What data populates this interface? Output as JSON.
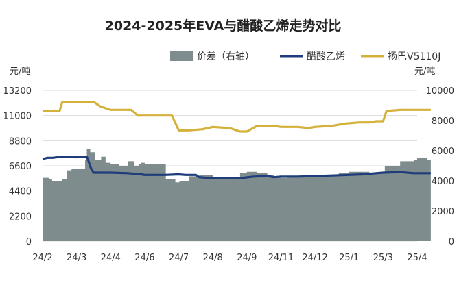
{
  "chart_data": {
    "type": "line",
    "title": "2024-2025年EVA与醋酸乙烯走势对比",
    "left_unit": "元/吨",
    "right_unit": "元/吨",
    "y_left": {
      "min": 0,
      "max": 13200,
      "ticks": [
        0,
        2200,
        4400,
        6600,
        8800,
        11000,
        13200
      ]
    },
    "y_right": {
      "min": 0,
      "max": 10000,
      "ticks": [
        0,
        2000,
        4000,
        6000,
        8000,
        10000
      ]
    },
    "x_ticks": [
      "24/2",
      "24/3",
      "24/4",
      "24/6",
      "24/7",
      "24/8",
      "24/9",
      "24/11",
      "24/12",
      "25/1",
      "25/3",
      "25/4"
    ],
    "legend": {
      "position": "top-right"
    },
    "series": [
      {
        "name": "价差（右轴）",
        "type": "area",
        "axis": "right",
        "color": "#7f8c8d",
        "x": [
          0,
          0.15,
          0.2,
          0.28,
          0.42,
          0.5,
          0.58,
          0.72,
          0.85,
          1.1,
          1.2,
          1.25,
          1.3,
          1.4,
          1.55,
          1.72,
          1.85,
          2.0,
          2.25,
          2.5,
          2.7,
          2.82,
          2.9,
          3.0,
          3.3,
          3.6,
          3.62,
          3.9,
          4.0,
          4.02,
          4.3,
          4.55,
          4.6,
          4.9,
          5.0,
          5.2,
          5.5,
          5.8,
          6.0,
          6.3,
          6.6,
          6.8,
          7.0,
          7.2,
          7.6,
          8.0,
          8.3,
          8.7,
          9.0,
          9.3,
          9.6,
          9.95,
          10.05,
          10.5,
          10.9,
          11.0,
          11.3,
          11.4
        ],
        "values": [
          4200,
          4200,
          4100,
          4000,
          4000,
          4000,
          4100,
          4700,
          4800,
          4800,
          4800,
          5400,
          6100,
          5900,
          5400,
          5600,
          5200,
          5100,
          5000,
          5300,
          5000,
          5100,
          5200,
          5100,
          5100,
          5100,
          4100,
          3900,
          3900,
          4000,
          4300,
          4300,
          4400,
          4400,
          4200,
          4100,
          4200,
          4500,
          4600,
          4500,
          4400,
          4300,
          4200,
          4300,
          4400,
          4300,
          4400,
          4500,
          4600,
          4600,
          4500,
          4500,
          5000,
          5300,
          5400,
          5500,
          5400,
          5400
        ]
      },
      {
        "name": "醋酸乙烯",
        "type": "line",
        "axis": "left",
        "color": "#1f3d7a",
        "x": [
          0,
          0.15,
          0.3,
          0.55,
          0.75,
          1.0,
          1.3,
          1.35,
          1.42,
          1.5,
          2.0,
          2.5,
          2.9,
          3.0,
          3.3,
          3.6,
          4.0,
          4.2,
          4.5,
          4.6,
          5.0,
          5.5,
          5.9,
          6.2,
          6.6,
          6.8,
          7.0,
          7.5,
          8.0,
          8.5,
          9.0,
          9.4,
          9.8,
          10.0,
          10.5,
          10.9,
          11.4
        ],
        "values": [
          7200,
          7300,
          7300,
          7400,
          7400,
          7350,
          7400,
          7000,
          6400,
          6000,
          6000,
          5950,
          5850,
          5800,
          5800,
          5800,
          5850,
          5800,
          5800,
          5600,
          5500,
          5500,
          5550,
          5650,
          5700,
          5600,
          5650,
          5650,
          5700,
          5750,
          5800,
          5850,
          5950,
          6000,
          6050,
          5950,
          5950
        ]
      },
      {
        "name": "扬巴V5110J",
        "type": "line",
        "axis": "left",
        "color": "#d4b13b",
        "x": [
          0,
          0.5,
          0.58,
          1.5,
          1.7,
          2.0,
          2.6,
          2.8,
          3.0,
          3.8,
          4.0,
          4.3,
          4.7,
          5.0,
          5.5,
          5.8,
          6.0,
          6.3,
          6.5,
          6.8,
          7.0,
          7.3,
          7.5,
          7.8,
          8.0,
          8.5,
          8.9,
          9.3,
          9.6,
          9.8,
          10.0,
          10.1,
          10.5,
          11.0,
          11.4
        ],
        "values": [
          11400,
          11400,
          12200,
          12200,
          11800,
          11500,
          11500,
          11000,
          11000,
          11000,
          9700,
          9700,
          9800,
          10000,
          9900,
          9600,
          9600,
          10100,
          10100,
          10100,
          10000,
          10000,
          10000,
          9900,
          10000,
          10100,
          10300,
          10400,
          10400,
          10500,
          10500,
          11400,
          11500,
          11500,
          11500
        ]
      }
    ],
    "colors": {
      "grid": "#d9d9d9",
      "axis_text": "#333333"
    }
  }
}
